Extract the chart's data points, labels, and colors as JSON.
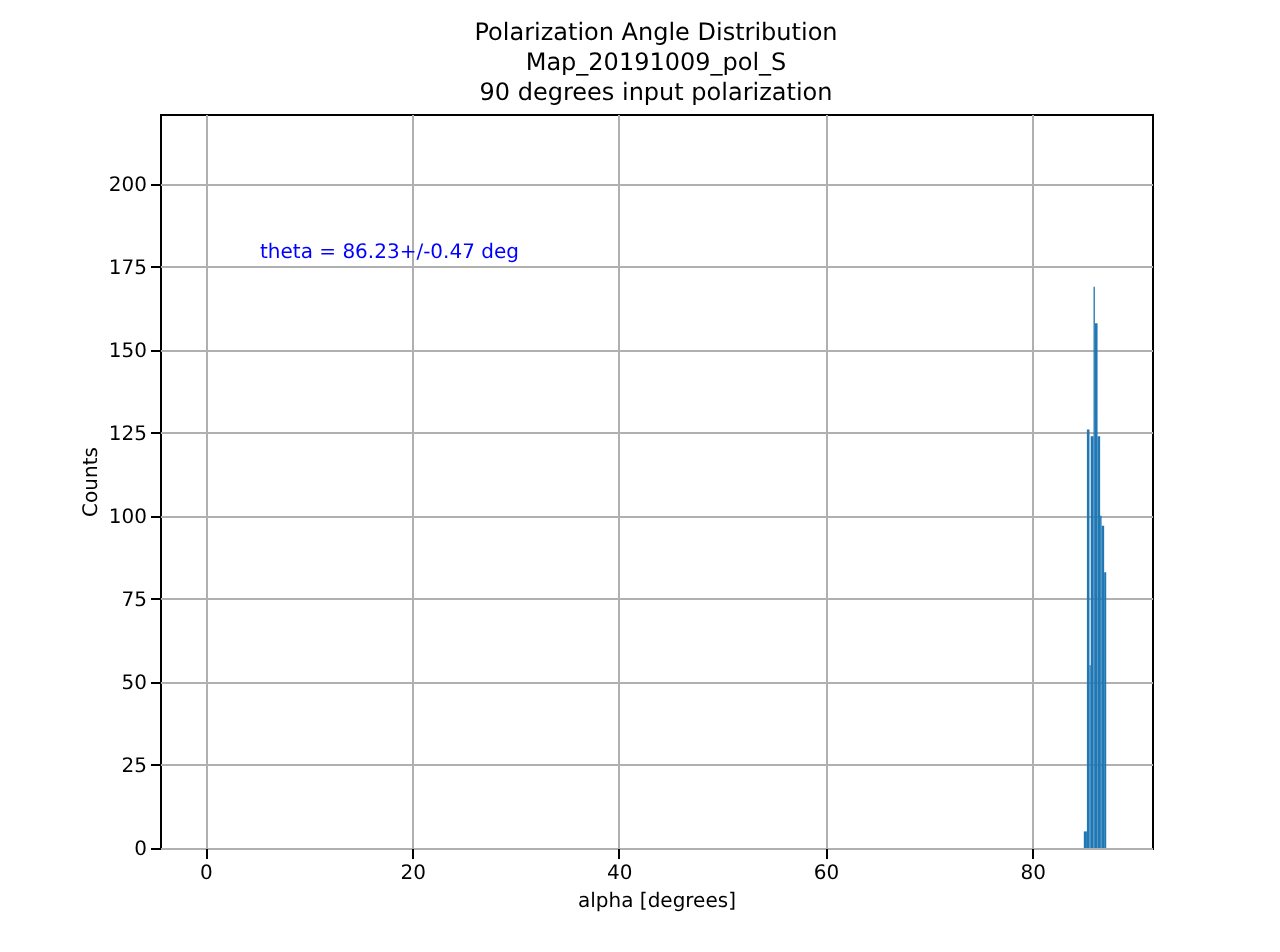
{
  "chart_data": {
    "type": "histogram",
    "title": "Polarization Angle Distribution\nMap_20191009_pol_S\n90 degrees input polarization",
    "xlabel": "alpha [degrees]",
    "ylabel": "Counts",
    "annotations": [
      "theta = 86.23+/-0.47 deg"
    ],
    "bins": [
      85.0,
      85.3,
      85.55,
      85.67,
      85.94,
      86.07,
      86.33,
      86.58,
      86.72,
      86.97,
      87.17
    ],
    "values": [
      5,
      126,
      55,
      124,
      169,
      158,
      124,
      100,
      97,
      83
    ],
    "color": "#1f77b4",
    "xlim": [
      -4.4,
      91.6
    ],
    "ylim": [
      0,
      221
    ],
    "xticks": [
      0,
      20,
      40,
      60,
      80
    ],
    "yticks": [
      0,
      25,
      50,
      75,
      100,
      125,
      150,
      175,
      200
    ],
    "grid": true
  }
}
